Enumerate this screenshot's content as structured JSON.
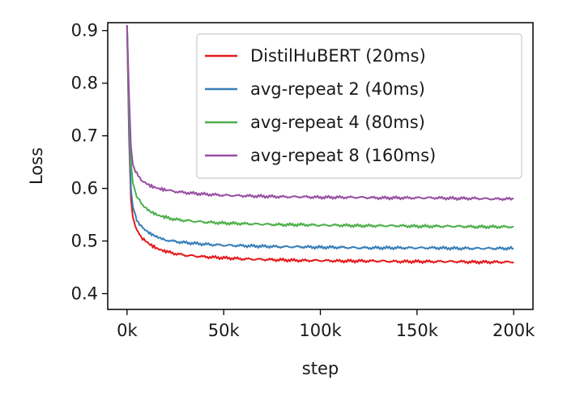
{
  "chart_data": {
    "type": "line",
    "title": "",
    "xlabel": "step",
    "ylabel": "Loss",
    "xlim": [
      -10000,
      210000
    ],
    "ylim": [
      0.37,
      0.915
    ],
    "xticks": [
      0,
      50000,
      100000,
      150000,
      200000
    ],
    "xtick_labels": [
      "0k",
      "50k",
      "100k",
      "150k",
      "200k"
    ],
    "yticks": [
      0.4,
      0.5,
      0.6,
      0.7,
      0.8,
      0.9
    ],
    "ytick_labels": [
      "0.4",
      "0.5",
      "0.6",
      "0.7",
      "0.8",
      "0.9"
    ],
    "grid": false,
    "legend_position": "top-right",
    "series": [
      {
        "name": "DistilHuBERT (20ms)",
        "color": "#e41a1c",
        "x": [
          0,
          1000,
          2000,
          3000,
          5000,
          8000,
          12000,
          16000,
          20000,
          25000,
          30000,
          40000,
          50000,
          60000,
          70000,
          80000,
          90000,
          100000,
          110000,
          120000,
          130000,
          140000,
          150000,
          160000,
          170000,
          180000,
          190000,
          200000
        ],
        "y": [
          0.91,
          0.7,
          0.58,
          0.545,
          0.52,
          0.505,
          0.493,
          0.485,
          0.48,
          0.476,
          0.473,
          0.47,
          0.468,
          0.466,
          0.465,
          0.464,
          0.463,
          0.463,
          0.462,
          0.462,
          0.462,
          0.461,
          0.461,
          0.461,
          0.461,
          0.46,
          0.46,
          0.46
        ]
      },
      {
        "name": "avg-repeat 2 (40ms)",
        "color": "#377eb8",
        "x": [
          0,
          1000,
          2000,
          3000,
          5000,
          8000,
          12000,
          16000,
          20000,
          25000,
          30000,
          40000,
          50000,
          60000,
          70000,
          80000,
          90000,
          100000,
          110000,
          120000,
          130000,
          140000,
          150000,
          160000,
          170000,
          180000,
          190000,
          200000
        ],
        "y": [
          0.91,
          0.72,
          0.6,
          0.565,
          0.54,
          0.525,
          0.514,
          0.507,
          0.502,
          0.499,
          0.497,
          0.494,
          0.492,
          0.491,
          0.49,
          0.489,
          0.489,
          0.488,
          0.488,
          0.487,
          0.487,
          0.487,
          0.487,
          0.487,
          0.486,
          0.486,
          0.486,
          0.486
        ]
      },
      {
        "name": "avg-repeat 4 (80ms)",
        "color": "#4daf4a",
        "x": [
          0,
          1000,
          2000,
          3000,
          5000,
          8000,
          12000,
          16000,
          20000,
          25000,
          30000,
          40000,
          50000,
          60000,
          70000,
          80000,
          90000,
          100000,
          110000,
          120000,
          130000,
          140000,
          150000,
          160000,
          170000,
          180000,
          190000,
          200000
        ],
        "y": [
          0.91,
          0.75,
          0.65,
          0.61,
          0.585,
          0.568,
          0.556,
          0.549,
          0.545,
          0.541,
          0.539,
          0.536,
          0.534,
          0.533,
          0.532,
          0.531,
          0.531,
          0.53,
          0.53,
          0.529,
          0.529,
          0.529,
          0.528,
          0.528,
          0.528,
          0.527,
          0.527,
          0.527
        ]
      },
      {
        "name": "avg-repeat 8 (160ms)",
        "color": "#984ea3",
        "x": [
          0,
          1000,
          2000,
          3000,
          5000,
          8000,
          12000,
          16000,
          20000,
          25000,
          30000,
          40000,
          50000,
          60000,
          70000,
          80000,
          90000,
          100000,
          110000,
          120000,
          130000,
          140000,
          150000,
          160000,
          170000,
          180000,
          190000,
          200000
        ],
        "y": [
          0.91,
          0.78,
          0.68,
          0.645,
          0.628,
          0.614,
          0.605,
          0.6,
          0.597,
          0.594,
          0.592,
          0.589,
          0.587,
          0.586,
          0.585,
          0.584,
          0.584,
          0.583,
          0.583,
          0.583,
          0.582,
          0.582,
          0.582,
          0.582,
          0.581,
          0.581,
          0.58,
          0.58
        ]
      }
    ]
  }
}
